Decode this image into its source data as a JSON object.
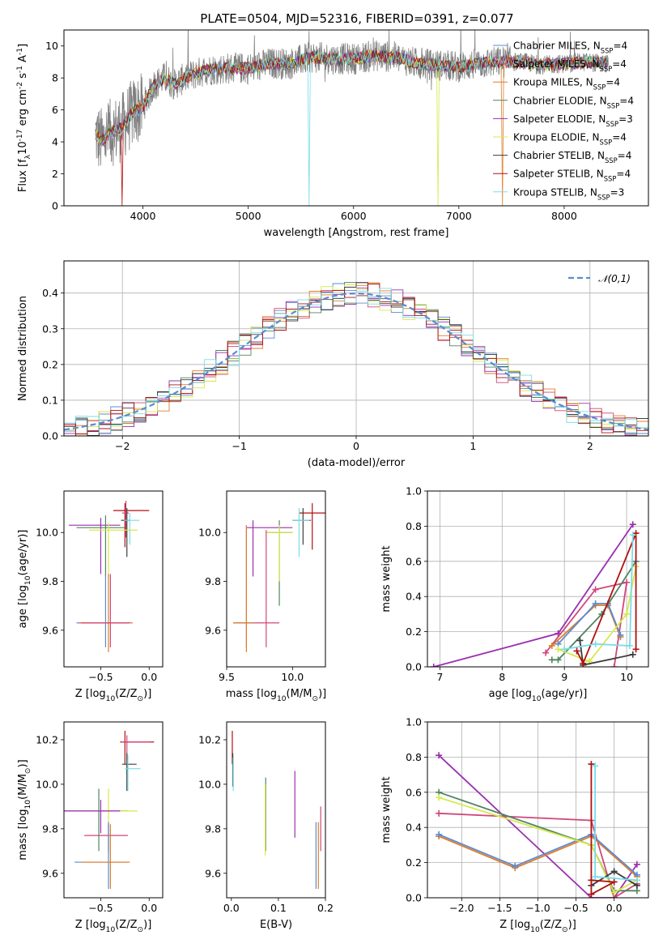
{
  "title": "PLATE=0504, MJD=52316, FIBERID=0391, z=0.077",
  "chart_data": [
    {
      "id": "spectrum",
      "type": "line",
      "xlabel": "wavelength [Angstrom, rest frame]",
      "ylabel": "Flux [f$_\\lambda$10$^{-17}$ erg cm$^{-2}$ s$^{-1}$ A$^{-1}$]",
      "xlim": [
        3250,
        8800
      ],
      "ylim": [
        0,
        11
      ],
      "xticks": [
        "4000",
        "5000",
        "6000",
        "7000",
        "8000"
      ],
      "yticks": [
        "0",
        "2",
        "4",
        "6",
        "8",
        "10"
      ],
      "grid": false,
      "legend_position": "top-right",
      "data_envelope": {
        "x": [
          3550,
          3600,
          3700,
          3800,
          3900,
          4000,
          4100,
          4200,
          4300,
          4400,
          4600,
          4800,
          5000,
          5200,
          5400,
          5600,
          5800,
          6000,
          6200,
          6400,
          6600,
          6800,
          7000,
          7200,
          7400,
          7600,
          7800,
          8000,
          8200,
          8400
        ],
        "y": [
          4.5,
          4.0,
          4.6,
          4.9,
          5.8,
          6.2,
          7.5,
          8.0,
          7.6,
          8.0,
          8.5,
          8.6,
          8.6,
          8.9,
          8.9,
          9.3,
          9.2,
          9.2,
          9.4,
          9.3,
          8.9,
          8.8,
          8.7,
          8.9,
          9.0,
          9.0,
          8.8,
          8.9,
          9.0,
          8.9
        ]
      },
      "series": [
        {
          "name": "Chabrier MILES, N$_{SSP}$=4",
          "color": "#5b8bd0"
        },
        {
          "name": "Salpeter MILES, N$_{SSP}$=4",
          "color": "#d1467a"
        },
        {
          "name": "Kroupa MILES, N$_{SSP}$=4",
          "color": "#e07d2a"
        },
        {
          "name": "Chabrier ELODIE, N$_{SSP}$=4",
          "color": "#4f8561"
        },
        {
          "name": "Salpeter ELODIE, N$_{SSP}$=3",
          "color": "#9b2fb0"
        },
        {
          "name": "Kroupa ELODIE, N$_{SSP}$=4",
          "color": "#d6e84a"
        },
        {
          "name": "Chabrier STELIB, N$_{SSP}$=4",
          "color": "#3d3d3d"
        },
        {
          "name": "Salpeter STELIB, N$_{SSP}$=4",
          "color": "#b01010"
        },
        {
          "name": "Kroupa STELIB, N$_{SSP}$=3",
          "color": "#78dde8"
        }
      ]
    },
    {
      "id": "residuals",
      "type": "area",
      "xlabel": "(data-model)/error",
      "ylabel": "Normed distribution",
      "xlim": [
        -2.5,
        2.5
      ],
      "ylim": [
        0,
        0.49
      ],
      "xticks": [
        "−2",
        "−1",
        "0",
        "1",
        "2"
      ],
      "yticks": [
        "0.0",
        "0.1",
        "0.2",
        "0.3",
        "0.4"
      ],
      "grid": true,
      "legend_position": "top-right",
      "legend": [
        "$\\mathcal{N}(0,1)$"
      ],
      "bin_width": 0.1
    },
    {
      "id": "Z-age",
      "type": "scatter",
      "xlabel": "Z [log$_{10}$(Z/Z$_\\odot$)]",
      "ylabel": "age [log$_{10}$(age/yr)]",
      "xlim": [
        -0.88,
        0.14
      ],
      "ylim": [
        9.45,
        10.17
      ],
      "xticks": [
        "−0.5",
        "0.0"
      ],
      "yticks": [
        "9.6",
        "9.8",
        "10.0"
      ],
      "points": [
        {
          "x": -0.25,
          "y": 10.09,
          "xe": [
            0.12,
            0.25
          ],
          "ye": [
            0.15,
            0.03
          ],
          "c": "#b01010"
        },
        {
          "x": -0.24,
          "y": 10.08,
          "xe": [
            0.04,
            0.03
          ],
          "ye": [
            0.1,
            0.05
          ],
          "c": "#d1467a"
        },
        {
          "x": -0.23,
          "y": 10.05,
          "xe": [
            0.06,
            0.03
          ],
          "ye": [
            0.15,
            0.05
          ],
          "c": "#3d3d3d"
        },
        {
          "x": -0.2,
          "y": 10.05,
          "xe": [
            0.06,
            0.1
          ],
          "ye": [
            0.1,
            0.03
          ],
          "c": "#78dde8"
        },
        {
          "x": -0.5,
          "y": 10.03,
          "xe": [
            0.33,
            0.2
          ],
          "ye": [
            0.2,
            0.03
          ],
          "c": "#9b2fb0"
        },
        {
          "x": -0.45,
          "y": 10.02,
          "xe": [
            0.3,
            0.2
          ],
          "ye": [
            0.2,
            0.05
          ],
          "c": "#4f8561"
        },
        {
          "x": -0.42,
          "y": 10.01,
          "xe": [
            0.2,
            0.3
          ],
          "ye": [
            0.2,
            0.03
          ],
          "c": "#d6e84a"
        },
        {
          "x": -0.45,
          "y": 9.63,
          "xe": [
            0.3,
            0.2
          ],
          "ye": [
            0.1,
            0.2
          ],
          "c": "#5b8bd0"
        },
        {
          "x": -0.42,
          "y": 9.63,
          "xe": [
            0.3,
            0.25
          ],
          "ye": [
            0.12,
            0.2
          ],
          "c": "#e07d2a"
        },
        {
          "x": -0.4,
          "y": 9.63,
          "xe": [
            0.3,
            0.2
          ],
          "ye": [
            0.1,
            0.2
          ],
          "c": "#d1467a"
        }
      ]
    },
    {
      "id": "mass-age",
      "type": "scatter",
      "xlabel": "mass [log$_{10}$(M/M$_\\odot$)]",
      "ylabel": "",
      "xlim": [
        9.5,
        10.25
      ],
      "ylim": [
        9.45,
        10.17
      ],
      "xticks": [
        "9.5",
        "10.0"
      ],
      "yticks": [
        "9.6",
        "9.8",
        "10.0"
      ],
      "points": [
        {
          "x": 10.15,
          "y": 10.08,
          "xe": [
            0.1,
            0.1
          ],
          "ye": [
            0.15,
            0.04
          ],
          "c": "#b01010"
        },
        {
          "x": 10.08,
          "y": 10.05,
          "xe": [
            0.08,
            0.06
          ],
          "ye": [
            0.1,
            0.05
          ],
          "c": "#3d3d3d"
        },
        {
          "x": 10.05,
          "y": 10.05,
          "xe": [
            0.05,
            0.08
          ],
          "ye": [
            0.15,
            0.05
          ],
          "c": "#78dde8"
        },
        {
          "x": 9.7,
          "y": 10.02,
          "xe": [
            0.05,
            0.3
          ],
          "ye": [
            0.2,
            0.03
          ],
          "c": "#9b2fb0"
        },
        {
          "x": 9.9,
          "y": 10.0,
          "xe": [
            0.1,
            0.1
          ],
          "ye": [
            0.3,
            0.05
          ],
          "c": "#4f8561"
        },
        {
          "x": 9.9,
          "y": 10.0,
          "xe": [
            0.1,
            0.1
          ],
          "ye": [
            0.2,
            0.03
          ],
          "c": "#d6e84a"
        },
        {
          "x": 9.65,
          "y": 9.63,
          "xe": [
            0.1,
            0.05
          ],
          "ye": [
            0.1,
            0.4
          ],
          "c": "#5b8bd0"
        },
        {
          "x": 9.65,
          "y": 9.63,
          "xe": [
            0.1,
            0.05
          ],
          "ye": [
            0.12,
            0.4
          ],
          "c": "#e07d2a"
        },
        {
          "x": 9.8,
          "y": 9.63,
          "xe": [
            0.1,
            0.1
          ],
          "ye": [
            0.1,
            0.38
          ],
          "c": "#d1467a"
        }
      ]
    },
    {
      "id": "age-weight",
      "type": "line",
      "xlabel": "age [log$_{10}$(age/yr)]",
      "ylabel": "mass weight",
      "xlim": [
        6.8,
        10.35
      ],
      "ylim": [
        0,
        1
      ],
      "xticks": [
        "7",
        "8",
        "9",
        "10"
      ],
      "yticks": [
        "0.0",
        "0.2",
        "0.4",
        "0.6",
        "0.8",
        "1.0"
      ],
      "grid": true,
      "series": [
        {
          "c": "#9b2fb0",
          "x": [
            6.9,
            8.9,
            10.1
          ],
          "y": [
            0.0,
            0.19,
            0.81
          ]
        },
        {
          "c": "#d1467a",
          "x": [
            8.7,
            9.5,
            10.0,
            9.8
          ],
          "y": [
            0.08,
            0.44,
            0.48,
            0.0
          ]
        },
        {
          "c": "#e07d2a",
          "x": [
            8.8,
            9.5,
            9.7,
            9.9
          ],
          "y": [
            0.12,
            0.35,
            0.35,
            0.17
          ]
        },
        {
          "c": "#5b8bd0",
          "x": [
            8.9,
            9.5,
            9.7,
            9.9
          ],
          "y": [
            0.13,
            0.36,
            0.36,
            0.18
          ]
        },
        {
          "c": "#4f8561",
          "x": [
            8.8,
            8.9,
            9.6,
            10.15
          ],
          "y": [
            0.04,
            0.04,
            0.3,
            0.6
          ]
        },
        {
          "c": "#d6e84a",
          "x": [
            8.9,
            9.4,
            10.0,
            10.15
          ],
          "y": [
            0.1,
            0.03,
            0.3,
            0.57
          ]
        },
        {
          "c": "#3d3d3d",
          "x": [
            9.25,
            9.3,
            10.1
          ],
          "y": [
            0.15,
            0.01,
            0.07
          ]
        },
        {
          "c": "#b01010",
          "x": [
            9.2,
            9.3,
            10.15,
            10.15
          ],
          "y": [
            0.09,
            0.02,
            0.76,
            0.1
          ]
        },
        {
          "c": "#78dde8",
          "x": [
            9.0,
            9.5,
            10.05,
            10.1
          ],
          "y": [
            0.1,
            0.13,
            0.12,
            0.75
          ]
        }
      ]
    },
    {
      "id": "Z-mass",
      "type": "scatter",
      "xlabel": "Z [log$_{10}$(Z/Z$_\\odot$)]",
      "ylabel": "mass [log$_{10}$(M/M$_\\odot$)]",
      "xlim": [
        -0.88,
        0.14
      ],
      "ylim": [
        9.49,
        10.28
      ],
      "xticks": [
        "−0.5",
        "0.0"
      ],
      "yticks": [
        "9.6",
        "9.8",
        "10.0",
        "10.2"
      ],
      "points": [
        {
          "x": -0.25,
          "y": 10.19,
          "xe": [
            0.05,
            0.3
          ],
          "ye": [
            0.1,
            0.05
          ],
          "c": "#b01010"
        },
        {
          "x": -0.23,
          "y": 10.19,
          "xe": [
            0.06,
            0.25
          ],
          "ye": [
            0.08,
            0.03
          ],
          "c": "#d1467a"
        },
        {
          "x": -0.23,
          "y": 10.09,
          "xe": [
            0.05,
            0.1
          ],
          "ye": [
            0.12,
            0.05
          ],
          "c": "#3d3d3d"
        },
        {
          "x": -0.22,
          "y": 10.07,
          "xe": [
            0.03,
            0.13
          ],
          "ye": [
            0.1,
            0.06
          ],
          "c": "#78dde8"
        },
        {
          "x": -0.52,
          "y": 9.88,
          "xe": [
            0.38,
            0.3
          ],
          "ye": [
            0.18,
            0.1
          ],
          "c": "#4f8561"
        },
        {
          "x": -0.42,
          "y": 9.88,
          "xe": [
            0.3,
            0.3
          ],
          "ye": [
            0.2,
            0.1
          ],
          "c": "#d6e84a"
        },
        {
          "x": -0.5,
          "y": 9.88,
          "xe": [
            0.4,
            0.2
          ],
          "ye": [
            0.1,
            0.05
          ],
          "c": "#9b2fb0"
        },
        {
          "x": -0.42,
          "y": 9.77,
          "xe": [
            0.25,
            0.2
          ],
          "ye": [
            0.07,
            0.05
          ],
          "c": "#d1467a"
        },
        {
          "x": -0.42,
          "y": 9.65,
          "xe": [
            0.35,
            0.2
          ],
          "ye": [
            0.12,
            0.18
          ],
          "c": "#5b8bd0"
        },
        {
          "x": -0.4,
          "y": 9.65,
          "xe": [
            0.3,
            0.2
          ],
          "ye": [
            0.12,
            0.17
          ],
          "c": "#e07d2a"
        }
      ]
    },
    {
      "id": "ebv-mass",
      "type": "scatter",
      "xlabel": "E(B-V)",
      "ylabel": "",
      "xlim": [
        -0.01,
        0.2
      ],
      "ylim": [
        9.49,
        10.28
      ],
      "xticks": [
        "0.0",
        "0.1",
        "0.2"
      ],
      "yticks": [
        "9.6",
        "9.8",
        "10.0",
        "10.2"
      ],
      "points": [
        {
          "x": 0.002,
          "y": 10.19,
          "ye": [
            0.1,
            0.05
          ],
          "c": "#b01010"
        },
        {
          "x": 0.003,
          "y": 10.09,
          "ye": [
            0.1,
            0.05
          ],
          "c": "#3d3d3d"
        },
        {
          "x": 0.004,
          "y": 10.07,
          "ye": [
            0.1,
            0.05
          ],
          "c": "#78dde8"
        },
        {
          "x": 0.073,
          "y": 9.88,
          "ye": [
            0.18,
            0.15
          ],
          "c": "#4f8561"
        },
        {
          "x": 0.072,
          "y": 9.88,
          "ye": [
            0.2,
            0.12
          ],
          "c": "#d6e84a"
        },
        {
          "x": 0.135,
          "y": 9.88,
          "ye": [
            0.12,
            0.18
          ],
          "c": "#9b2fb0"
        },
        {
          "x": 0.19,
          "y": 9.8,
          "ye": [
            0.1,
            0.1
          ],
          "c": "#d1467a"
        },
        {
          "x": 0.18,
          "y": 9.65,
          "ye": [
            0.12,
            0.18
          ],
          "c": "#5b8bd0"
        },
        {
          "x": 0.185,
          "y": 9.65,
          "ye": [
            0.12,
            0.18
          ],
          "c": "#e07d2a"
        }
      ]
    },
    {
      "id": "Z-weight",
      "type": "line",
      "xlabel": "Z [log$_{10}$(Z/Z$_\\odot$)]",
      "ylabel": "mass weight",
      "xlim": [
        -2.45,
        0.45
      ],
      "ylim": [
        0,
        1
      ],
      "xticks": [
        "−2.0",
        "−1.5",
        "−1.0",
        "−0.5",
        "0.0"
      ],
      "yticks": [
        "0.0",
        "0.2",
        "0.4",
        "0.6",
        "0.8",
        "1.0"
      ],
      "grid": true,
      "series": [
        {
          "c": "#9b2fb0",
          "x": [
            -2.3,
            -0.3,
            0.0,
            0.3
          ],
          "y": [
            0.81,
            0.0,
            0.0,
            0.19
          ]
        },
        {
          "c": "#d1467a",
          "x": [
            -2.3,
            -0.3,
            0.0,
            0.3
          ],
          "y": [
            0.48,
            0.44,
            0.0,
            0.08
          ]
        },
        {
          "c": "#e07d2a",
          "x": [
            -2.3,
            -1.3,
            -0.3,
            0.3
          ],
          "y": [
            0.35,
            0.17,
            0.35,
            0.12
          ]
        },
        {
          "c": "#5b8bd0",
          "x": [
            -2.3,
            -1.3,
            -0.3,
            0.3
          ],
          "y": [
            0.36,
            0.18,
            0.36,
            0.13
          ]
        },
        {
          "c": "#4f8561",
          "x": [
            -2.3,
            -0.3,
            0.0,
            0.3
          ],
          "y": [
            0.6,
            0.3,
            0.04,
            0.04
          ]
        },
        {
          "c": "#d6e84a",
          "x": [
            -2.3,
            -0.3,
            0.0,
            0.3
          ],
          "y": [
            0.57,
            0.3,
            0.03,
            0.1
          ]
        },
        {
          "c": "#3d3d3d",
          "x": [
            -0.3,
            0.0,
            0.3
          ],
          "y": [
            0.07,
            0.15,
            0.07
          ]
        },
        {
          "c": "#b01010",
          "x": [
            -0.3,
            -0.3,
            0.0,
            -0.3
          ],
          "y": [
            0.76,
            0.02,
            0.09,
            0.1
          ]
        },
        {
          "c": "#78dde8",
          "x": [
            -0.25,
            -0.25,
            0.3
          ],
          "y": [
            0.75,
            0.12,
            0.1
          ]
        }
      ]
    }
  ]
}
